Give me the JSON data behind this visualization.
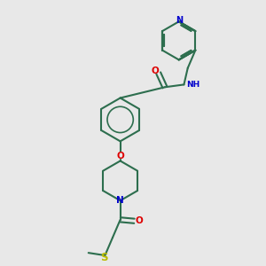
{
  "background_color": "#e8e8e8",
  "atom_colors": {
    "N": "#0000cc",
    "O": "#dd0000",
    "S": "#bbbb00",
    "C": "#2d6e4e"
  },
  "bond_color": "#2d6e4e",
  "bond_width": 1.5,
  "figsize": [
    3.0,
    3.0
  ],
  "dpi": 100,
  "xlim": [
    0,
    10
  ],
  "ylim": [
    0,
    10
  ]
}
